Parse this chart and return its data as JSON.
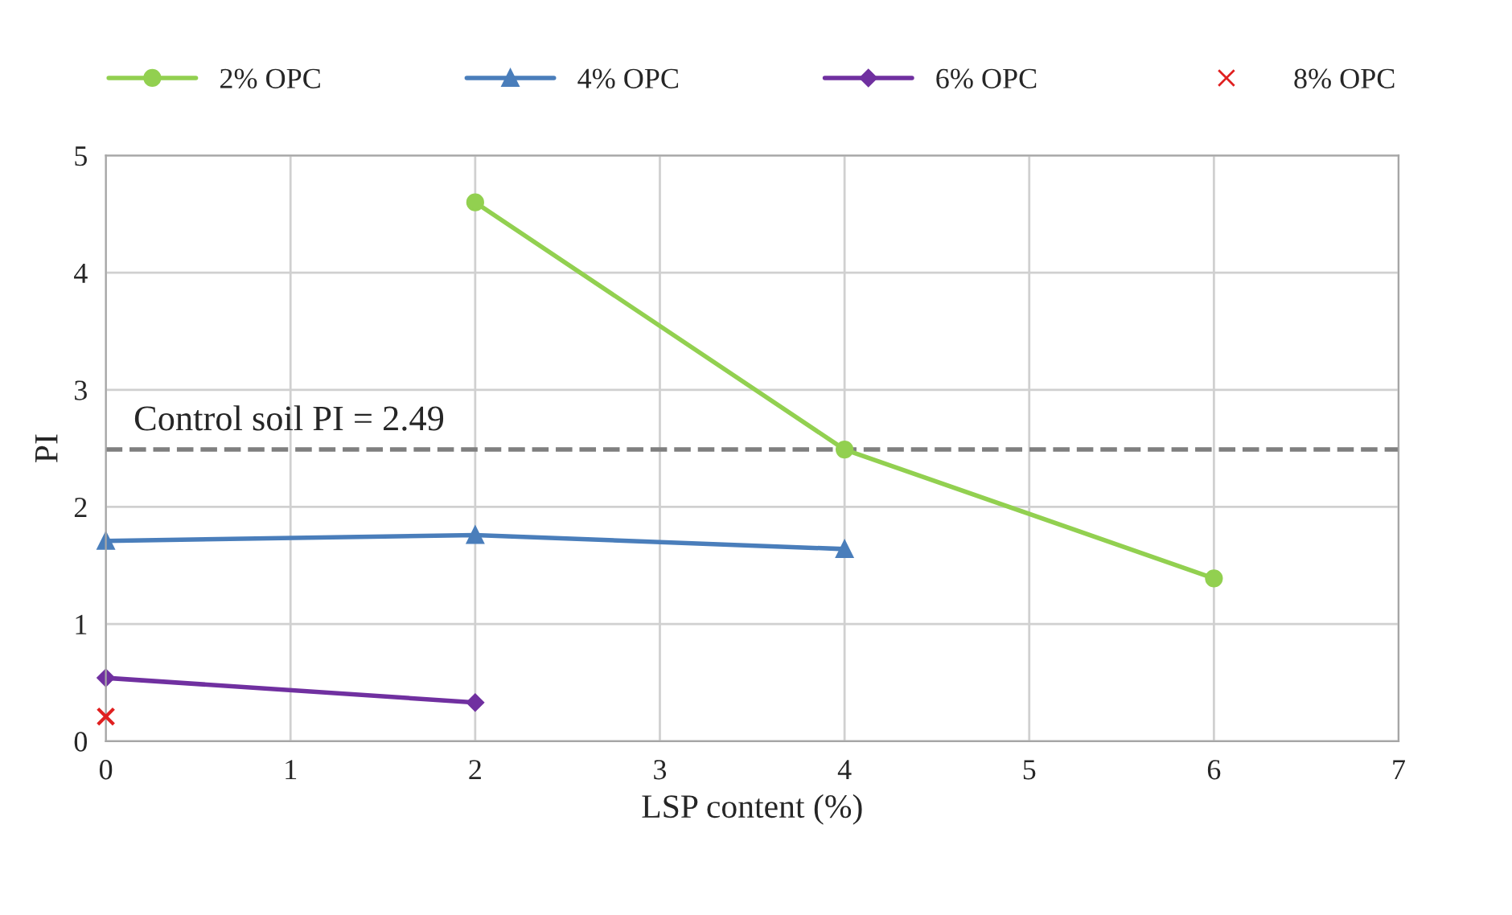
{
  "chart_data": {
    "type": "line",
    "xlabel": "LSP content (%)",
    "ylabel": "PI",
    "series": [
      {
        "name": "2% OPC",
        "color": "#92d050",
        "marker": "circle",
        "x": [
          2,
          4,
          6
        ],
        "values": [
          4.6,
          2.49,
          1.39
        ]
      },
      {
        "name": "4% OPC",
        "color": "#4a7ebb",
        "marker": "triangle",
        "x": [
          0,
          2,
          4
        ],
        "values": [
          1.71,
          1.76,
          1.64
        ]
      },
      {
        "name": "6% OPC",
        "color": "#7030a0",
        "marker": "diamond",
        "x": [
          0,
          2
        ],
        "values": [
          0.54,
          0.33
        ]
      },
      {
        "name": "8% OPC",
        "color": "#e02020",
        "type": "scatter",
        "marker": "cross",
        "x": [
          0
        ],
        "values": [
          0.21
        ]
      }
    ],
    "xlim": [
      0,
      7
    ],
    "xticks": [
      0,
      1,
      2,
      3,
      4,
      5,
      6,
      7
    ],
    "ylim": [
      0,
      5
    ],
    "yticks": [
      0,
      1,
      2,
      3,
      4,
      5
    ],
    "grid": true,
    "legend": "top",
    "ref_lines": [
      {
        "axis": "y",
        "value": 2.49,
        "label": "Control soil PI = 2.49",
        "color": "#7f7f7f",
        "line_style": "dashed"
      }
    ]
  }
}
